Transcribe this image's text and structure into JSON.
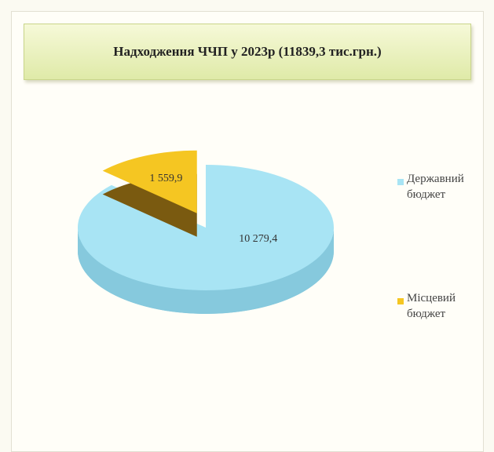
{
  "chart_data": {
    "type": "pie3d",
    "title": "Надходження ЧЧП у 2023р (11839,3 тис.грн.)",
    "categories": [
      "Державний бюджет",
      "Місцевий бюджет"
    ],
    "values": [
      10279.4,
      1559.9
    ],
    "value_labels": [
      "10 279,4",
      "1 559,9"
    ],
    "colors": [
      "#a8e4f4",
      "#f5c622"
    ],
    "side_colors": [
      "#86c9dd",
      "#7a5a10"
    ]
  }
}
